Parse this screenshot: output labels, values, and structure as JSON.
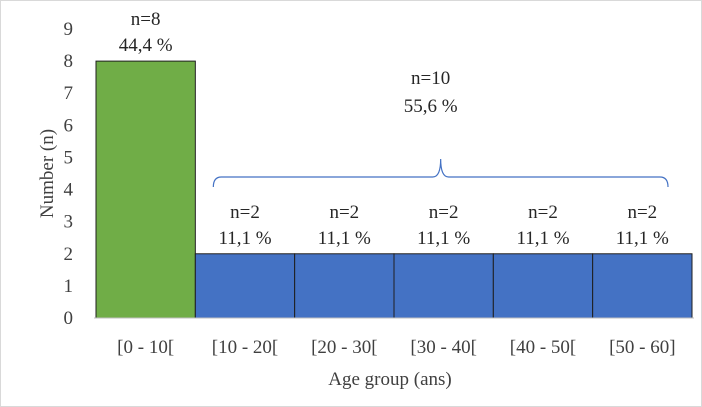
{
  "chart_data": {
    "type": "bar",
    "categories": [
      "[0 - 10[",
      "[10 - 20[",
      "[20 - 30[",
      "[30 - 40[",
      "[40 - 50[",
      "[50 - 60]"
    ],
    "values": [
      8,
      2,
      2,
      2,
      2,
      2
    ],
    "bar_colors": [
      "#70ad47",
      "#4472c4",
      "#4472c4",
      "#4472c4",
      "#4472c4",
      "#4472c4"
    ],
    "count_labels": [
      "n=8",
      "n=2",
      "n=2",
      "n=2",
      "n=2",
      "n=2"
    ],
    "percent_labels": [
      "44,4 %",
      "11,1 %",
      "11,1 %",
      "11,1 %",
      "11,1 %",
      "11,1 %"
    ],
    "xlabel": "Age group (ans)",
    "ylabel": "Number (n)",
    "ylim": [
      0,
      9
    ],
    "yticks": [
      "0",
      "1",
      "2",
      "3",
      "4",
      "5",
      "6",
      "7",
      "8",
      "9"
    ],
    "grid": false,
    "group_annotation": {
      "from_category": 1,
      "to_category": 5,
      "count_label": "n=10",
      "percent_label": "55,6 %",
      "bracket_color": "#4472c4"
    }
  }
}
